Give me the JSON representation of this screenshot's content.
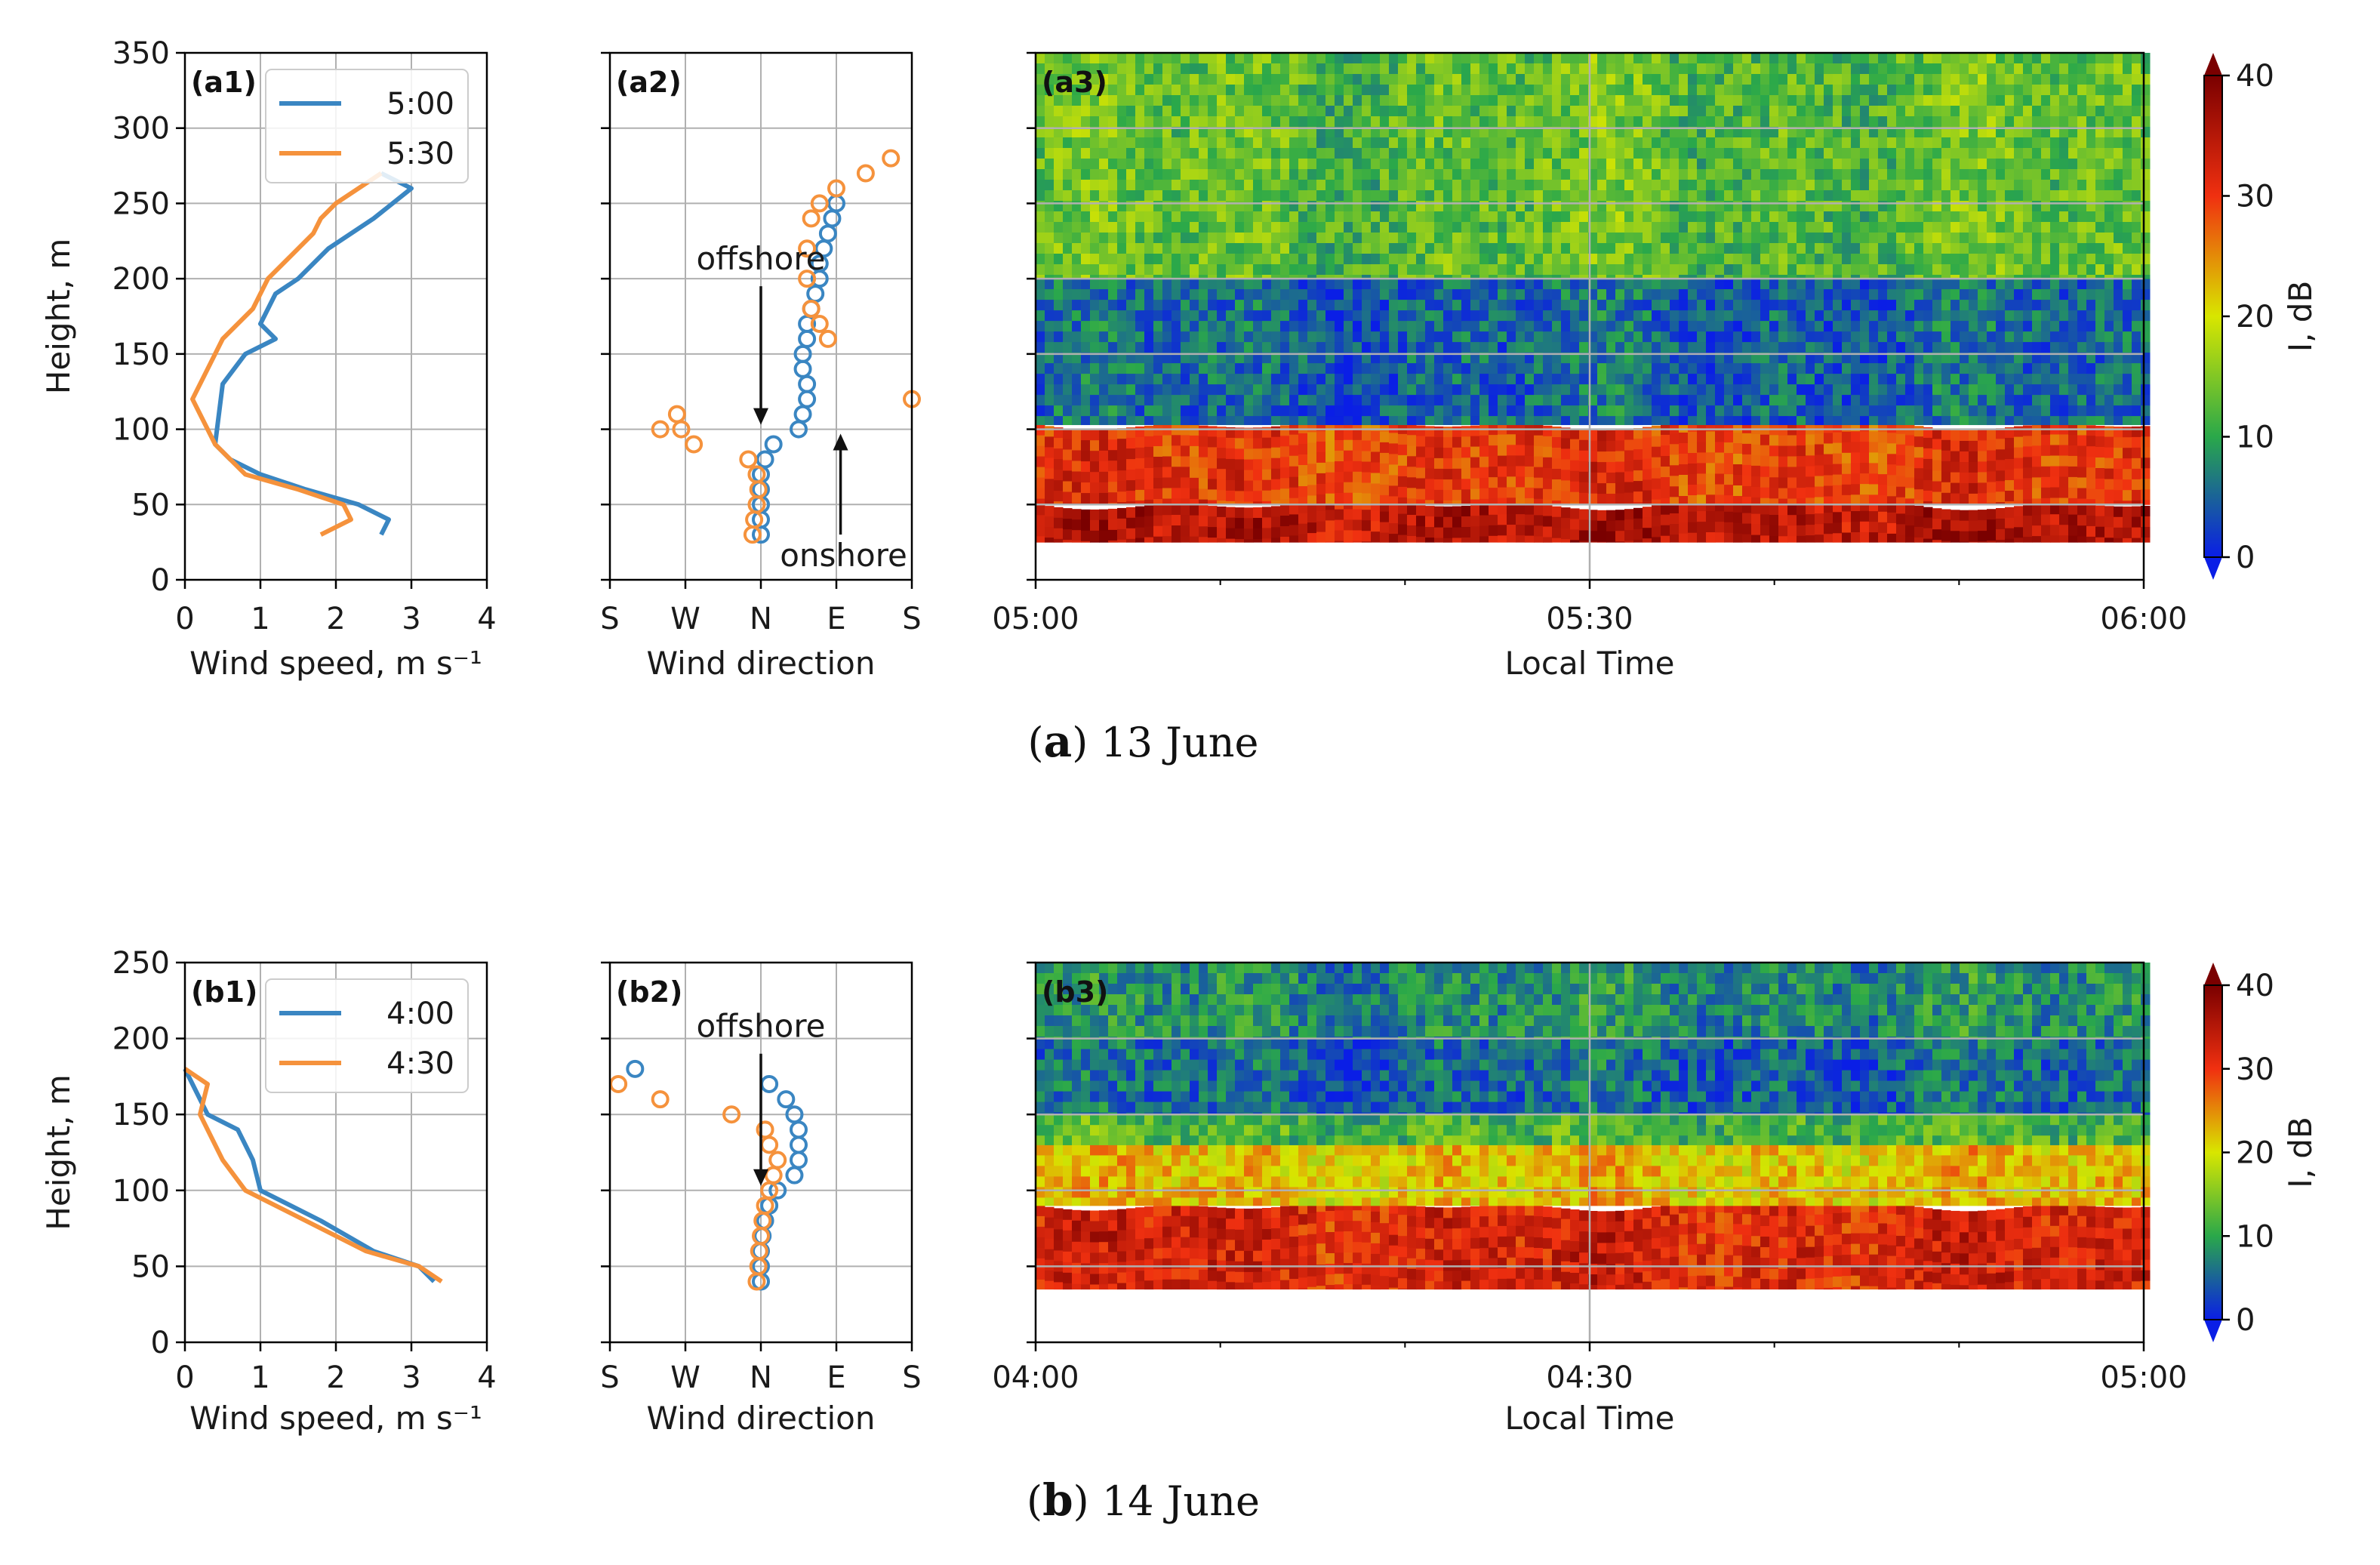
{
  "colors": {
    "series_a": "#3a86c2",
    "series_b": "#f5923c",
    "grid": "#b0b0b0"
  },
  "groups": [
    {
      "caption_letter": "a",
      "caption_text": "13 June",
      "profile_panel": "(a1)",
      "direction_panel": "(a2)",
      "echo_panel": "(a3)",
      "annotations": [
        "offshore",
        "onshore"
      ]
    },
    {
      "caption_letter": "b",
      "caption_text": "14 June",
      "profile_panel": "(b1)",
      "direction_panel": "(b2)",
      "echo_panel": "(b3)",
      "annotations": [
        "offshore"
      ]
    }
  ],
  "chart_data": [
    {
      "id": "a1",
      "type": "line",
      "title": "(a1)",
      "xlabel": "Wind speed, m s⁻¹",
      "ylabel": "Height, m",
      "xlim": [
        0,
        4
      ],
      "ylim": [
        0,
        350
      ],
      "xticks": [
        "0",
        "1",
        "2",
        "3",
        "4"
      ],
      "yticks": [
        "0",
        "50",
        "100",
        "150",
        "200",
        "250",
        "300",
        "350"
      ],
      "legend": "top-right",
      "series": [
        {
          "name": "5:00",
          "x": [
            2.6,
            2.7,
            2.3,
            1.6,
            1.0,
            0.6,
            0.4,
            0.45,
            0.5,
            0.8,
            1.2,
            1.0,
            1.2,
            1.5,
            1.9,
            2.5,
            3.0,
            2.6
          ],
          "y": [
            30,
            40,
            50,
            60,
            70,
            80,
            90,
            110,
            130,
            150,
            160,
            170,
            190,
            200,
            220,
            240,
            260,
            270
          ]
        },
        {
          "name": "5:30",
          "x": [
            1.8,
            2.2,
            2.1,
            1.5,
            0.8,
            0.4,
            0.2,
            0.1,
            0.3,
            0.5,
            0.9,
            1.1,
            1.5,
            1.7,
            1.8,
            2.0,
            2.6
          ],
          "y": [
            30,
            40,
            50,
            60,
            70,
            90,
            110,
            120,
            140,
            160,
            180,
            200,
            220,
            230,
            240,
            250,
            270
          ]
        }
      ]
    },
    {
      "id": "a2",
      "type": "scatter",
      "title": "(a2)",
      "xlabel": "Wind direction",
      "xticks": [
        "S",
        "W",
        "N",
        "E",
        "S"
      ],
      "xlim": [
        -180,
        180
      ],
      "ylim": [
        0,
        350
      ],
      "annotations": [
        {
          "text": "offshore",
          "direction": "down",
          "x": 0,
          "y_from": 195,
          "y_to": 103
        },
        {
          "text": "onshore",
          "direction": "up",
          "x": 95,
          "y_from": 30,
          "y_to": 97
        }
      ],
      "series": [
        {
          "name": "5:00",
          "x": [
            0,
            0,
            0,
            0,
            0,
            5,
            15,
            45,
            50,
            55,
            55,
            50,
            50,
            55,
            55,
            60,
            65,
            70,
            70,
            75,
            80,
            85,
            90
          ],
          "y": [
            30,
            40,
            50,
            60,
            70,
            80,
            90,
            100,
            110,
            120,
            130,
            140,
            150,
            160,
            170,
            180,
            190,
            200,
            210,
            220,
            230,
            240,
            250
          ]
        },
        {
          "name": "5:30",
          "x": [
            -10,
            -8,
            -5,
            -3,
            -5,
            -15,
            -80,
            -120,
            -100,
            -95,
            80,
            70,
            60,
            55,
            55,
            60,
            70,
            90,
            125,
            155,
            180
          ],
          "y": [
            30,
            40,
            50,
            60,
            70,
            80,
            90,
            100,
            110,
            100,
            160,
            170,
            180,
            200,
            220,
            240,
            250,
            260,
            270,
            280,
            120
          ]
        }
      ]
    },
    {
      "id": "a3",
      "type": "heatmap",
      "title": "(a3)",
      "xlabel": "Local Time",
      "xticks": [
        "05:00",
        "05:30",
        "06:00"
      ],
      "ylim": [
        0,
        350
      ],
      "colorbar_label": "I, dB",
      "colorbar_ticks": [
        "0",
        "10",
        "20",
        "30",
        "40"
      ],
      "colorbar_range": [
        0,
        40
      ],
      "layers": [
        {
          "from": 25,
          "to": 50,
          "intensity_db": 35
        },
        {
          "from": 50,
          "to": 103,
          "intensity_db": 30
        },
        {
          "from": 103,
          "to": 200,
          "intensity_db": 5
        },
        {
          "from": 200,
          "to": 350,
          "intensity_db": 13
        }
      ]
    },
    {
      "id": "b1",
      "type": "line",
      "title": "(b1)",
      "xlabel": "Wind speed, m s⁻¹",
      "ylabel": "Height, m",
      "xlim": [
        0,
        4
      ],
      "ylim": [
        0,
        250
      ],
      "xticks": [
        "0",
        "1",
        "2",
        "3",
        "4"
      ],
      "yticks": [
        "0",
        "50",
        "100",
        "150",
        "200",
        "250"
      ],
      "legend": "top-right",
      "series": [
        {
          "name": "4:00",
          "x": [
            3.3,
            3.1,
            2.5,
            1.8,
            1.0,
            0.9,
            0.7,
            0.3,
            0.1,
            0.0
          ],
          "y": [
            40,
            50,
            60,
            80,
            100,
            120,
            140,
            150,
            170,
            180
          ]
        },
        {
          "name": "4:30",
          "x": [
            3.4,
            3.1,
            2.4,
            1.6,
            0.8,
            0.5,
            0.2,
            0.3,
            0.0
          ],
          "y": [
            40,
            50,
            60,
            80,
            100,
            120,
            150,
            170,
            180
          ]
        }
      ]
    },
    {
      "id": "b2",
      "type": "scatter",
      "title": "(b2)",
      "xlabel": "Wind direction",
      "xticks": [
        "S",
        "W",
        "N",
        "E",
        "S"
      ],
      "xlim": [
        -180,
        180
      ],
      "ylim": [
        0,
        250
      ],
      "annotations": [
        {
          "text": "offshore",
          "direction": "down",
          "x": 0,
          "y_from": 190,
          "y_to": 103
        }
      ],
      "series": [
        {
          "name": "4:00",
          "x": [
            0,
            0,
            0,
            2,
            5,
            10,
            20,
            40,
            45,
            45,
            45,
            40,
            30,
            10,
            -150
          ],
          "y": [
            40,
            50,
            60,
            70,
            80,
            90,
            100,
            110,
            120,
            130,
            140,
            150,
            160,
            170,
            180
          ]
        },
        {
          "name": "4:30",
          "x": [
            -5,
            -3,
            -2,
            0,
            2,
            5,
            10,
            15,
            20,
            10,
            5,
            -35,
            -120,
            -170
          ],
          "y": [
            40,
            50,
            60,
            70,
            80,
            90,
            100,
            110,
            120,
            130,
            140,
            150,
            160,
            170
          ]
        }
      ]
    },
    {
      "id": "b3",
      "type": "heatmap",
      "title": "(b3)",
      "xlabel": "Local Time",
      "xticks": [
        "04:00",
        "04:30",
        "05:00"
      ],
      "ylim": [
        0,
        250
      ],
      "colorbar_label": "I, dB",
      "colorbar_ticks": [
        "0",
        "10",
        "20",
        "30",
        "40"
      ],
      "colorbar_range": [
        0,
        40
      ],
      "layers": [
        {
          "from": 35,
          "to": 90,
          "intensity_db": 32
        },
        {
          "from": 90,
          "to": 130,
          "intensity_db": 22
        },
        {
          "from": 130,
          "to": 150,
          "intensity_db": 12
        },
        {
          "from": 150,
          "to": 200,
          "intensity_db": 5
        },
        {
          "from": 200,
          "to": 250,
          "intensity_db": 8
        }
      ]
    }
  ]
}
